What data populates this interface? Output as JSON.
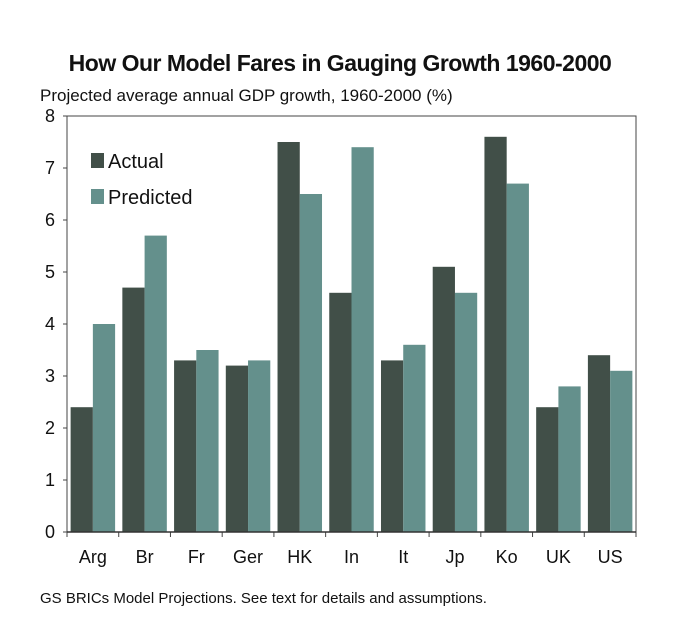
{
  "chart_data": {
    "type": "bar",
    "title": "How Our Model Fares in Gauging Growth 1960-2000",
    "subtitle": "Projected average annual GDP growth, 1960-2000 (%)",
    "footer": "GS BRICs Model Projections. See text for details and assumptions.",
    "categories": [
      "Arg",
      "Br",
      "Fr",
      "Ger",
      "HK",
      "In",
      "It",
      "Jp",
      "Ko",
      "UK",
      "US"
    ],
    "series": [
      {
        "name": "Actual",
        "color": "#414f48",
        "values": [
          2.4,
          4.7,
          3.3,
          3.2,
          7.5,
          4.6,
          3.3,
          5.1,
          7.6,
          2.4,
          3.4
        ]
      },
      {
        "name": "Predicted",
        "color": "#64908c",
        "values": [
          4.0,
          5.7,
          3.5,
          3.3,
          6.5,
          7.4,
          3.6,
          4.6,
          6.7,
          2.8,
          3.1
        ]
      }
    ],
    "yticks": [
      "0",
      "1",
      "2",
      "3",
      "4",
      "5",
      "6",
      "7",
      "8"
    ],
    "ylim": [
      0,
      8
    ],
    "legend_position": "top-left",
    "grid": false
  }
}
